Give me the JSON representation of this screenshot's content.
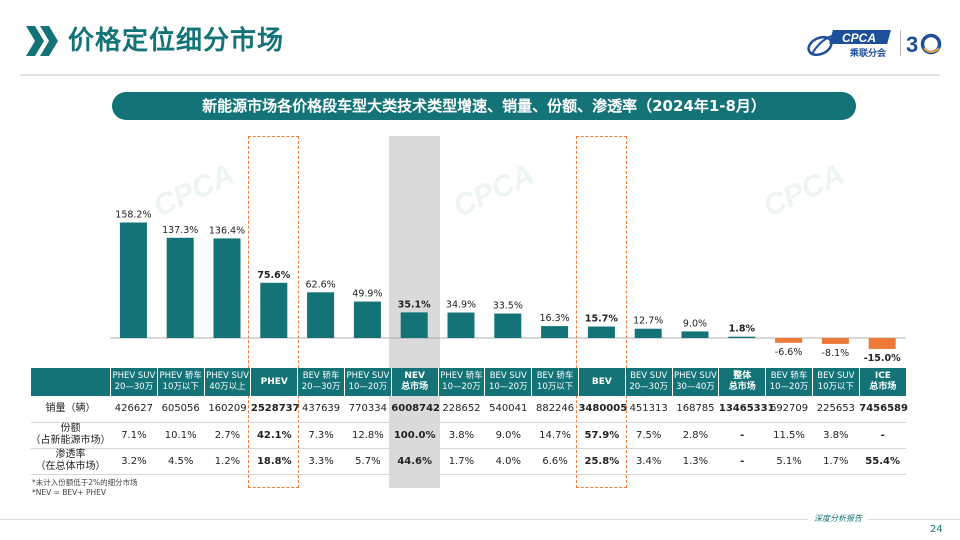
{
  "header": {
    "title": "价格定位细分市场",
    "logo_text": "CPCA",
    "logo_cn": "乘联分会",
    "anniversary": "30"
  },
  "subtitle": "新能源市场各价格段车型大类技术类型增速、销量、份额、渗透率（2024年1-8月）",
  "colors": {
    "teal": "#137377",
    "negative": "#ee7a3a",
    "highlight": "#ee7a3a",
    "nev_shade": "#dadada"
  },
  "chart_data": {
    "type": "bar",
    "categories": [
      "PHEV SUV 20—30万",
      "PHEV 轿车 10万以下",
      "PHEV SUV 40万以上",
      "PHEV",
      "BEV 轿车 20—30万",
      "PHEV SUV 10—20万",
      "NEV 总市场",
      "PHEV 轿车 10—20万",
      "BEV SUV 10—20万",
      "BEV 轿车 10万以下",
      "BEV",
      "BEV SUV 20—30万",
      "PHEV SUV 30—40万",
      "整体 总市场",
      "BEV 轿车 10—20万",
      "BEV SUV 10万以下",
      "ICE 总市场"
    ],
    "values": [
      158.2,
      137.3,
      136.4,
      75.6,
      62.6,
      49.9,
      35.1,
      34.9,
      33.5,
      16.3,
      15.7,
      12.7,
      9.0,
      1.8,
      -6.6,
      -8.1,
      -15.0
    ],
    "value_labels": [
      "158.2%",
      "137.3%",
      "136.4%",
      "75.6%",
      "62.6%",
      "49.9%",
      "35.1%",
      "34.9%",
      "33.5%",
      "16.3%",
      "15.7%",
      "12.7%",
      "9.0%",
      "1.8%",
      "-6.6%",
      "-8.1%",
      "-15.0%"
    ],
    "bold_labels": [
      3,
      6,
      10,
      13,
      16
    ],
    "ylabel": "",
    "xlabel": ""
  },
  "table": {
    "headers": [
      [
        "PHEV SUV",
        "20—30万"
      ],
      [
        "PHEV 轿车",
        "10万以下"
      ],
      [
        "PHEV SUV",
        "40万以上"
      ],
      [
        "PHEV"
      ],
      [
        "BEV 轿车",
        "20—30万"
      ],
      [
        "PHEV SUV",
        "10—20万"
      ],
      [
        "NEV",
        "总市场"
      ],
      [
        "PHEV 轿车",
        "10—20万"
      ],
      [
        "BEV SUV",
        "10—20万"
      ],
      [
        "BEV 轿车",
        "10万以下"
      ],
      [
        "BEV"
      ],
      [
        "BEV SUV",
        "20—30万"
      ],
      [
        "PHEV SUV",
        "30—40万"
      ],
      [
        "整体",
        "总市场"
      ],
      [
        "BEV 轿车",
        "10—20万"
      ],
      [
        "BEV SUV",
        "10万以下"
      ],
      [
        "ICE",
        "总市场"
      ]
    ],
    "bold_header_cols": [
      3,
      6,
      10,
      13,
      16
    ],
    "rows": [
      {
        "label": [
          "销量（辆）"
        ],
        "values": [
          "426627",
          "605056",
          "160209",
          "2528737",
          "437639",
          "770334",
          "6008742",
          "228652",
          "540041",
          "882246",
          "3480005",
          "451313",
          "168785",
          "13465331",
          "692709",
          "225653",
          "7456589"
        ]
      },
      {
        "label": [
          "份额",
          "（占新能源市场）"
        ],
        "values": [
          "7.1%",
          "10.1%",
          "2.7%",
          "42.1%",
          "7.3%",
          "12.8%",
          "100.0%",
          "3.8%",
          "9.0%",
          "14.7%",
          "57.9%",
          "7.5%",
          "2.8%",
          "-",
          "11.5%",
          "3.8%",
          "-"
        ]
      },
      {
        "label": [
          "渗透率",
          "（在总体市场）"
        ],
        "values": [
          "3.2%",
          "4.5%",
          "1.2%",
          "18.8%",
          "3.3%",
          "5.7%",
          "44.6%",
          "1.7%",
          "4.0%",
          "6.6%",
          "25.8%",
          "3.4%",
          "1.3%",
          "-",
          "5.1%",
          "1.7%",
          "55.4%"
        ]
      }
    ]
  },
  "notes": [
    "*未计入份额低于2%的细分市场",
    "*NEV = BEV+ PHEV"
  ],
  "footer": {
    "tag": "深度分析报告",
    "page": "24"
  }
}
